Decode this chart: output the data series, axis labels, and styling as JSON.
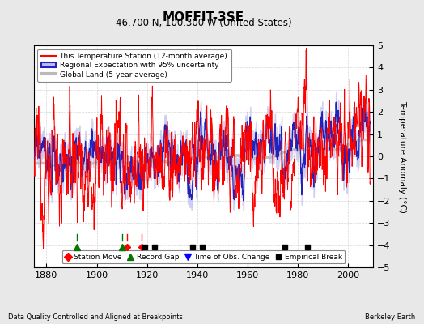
{
  "title": "MOFFIT-3SE",
  "subtitle": "46.700 N, 100.300 W (United States)",
  "ylabel": "Temperature Anomaly (°C)",
  "footer_left": "Data Quality Controlled and Aligned at Breakpoints",
  "footer_right": "Berkeley Earth",
  "xlim": [
    1875,
    2010
  ],
  "ylim": [
    -5,
    5
  ],
  "yticks": [
    -5,
    -4,
    -3,
    -2,
    -1,
    0,
    1,
    2,
    3,
    4,
    5
  ],
  "xticks": [
    1880,
    1900,
    1920,
    1940,
    1960,
    1980,
    2000
  ],
  "legend_items": [
    {
      "label": "This Temperature Station (12-month average)",
      "color": "#FF0000",
      "lw": 1.2
    },
    {
      "label": "Regional Expectation with 95% uncertainty",
      "color": "#3333CC",
      "band_color": "#AAAAEE"
    },
    {
      "label": "Global Land (5-year average)",
      "color": "#AAAAAA",
      "lw": 3
    }
  ],
  "marker_legend": [
    {
      "label": "Station Move",
      "marker": "D",
      "color": "#FF0000"
    },
    {
      "label": "Record Gap",
      "marker": "^",
      "color": "#007700"
    },
    {
      "label": "Time of Obs. Change",
      "marker": "v",
      "color": "#0000FF"
    },
    {
      "label": "Empirical Break",
      "marker": "s",
      "color": "#000000"
    }
  ],
  "station_moves": [
    1912,
    1918
  ],
  "record_gaps": [
    1892,
    1910
  ],
  "time_obs_changes": [],
  "empirical_breaks": [
    1919,
    1923,
    1938,
    1942,
    1975,
    1984
  ],
  "background_color": "#E8E8E8",
  "plot_bg_color": "#FFFFFF",
  "grid_color": "#CCCCCC",
  "seed": 12345
}
